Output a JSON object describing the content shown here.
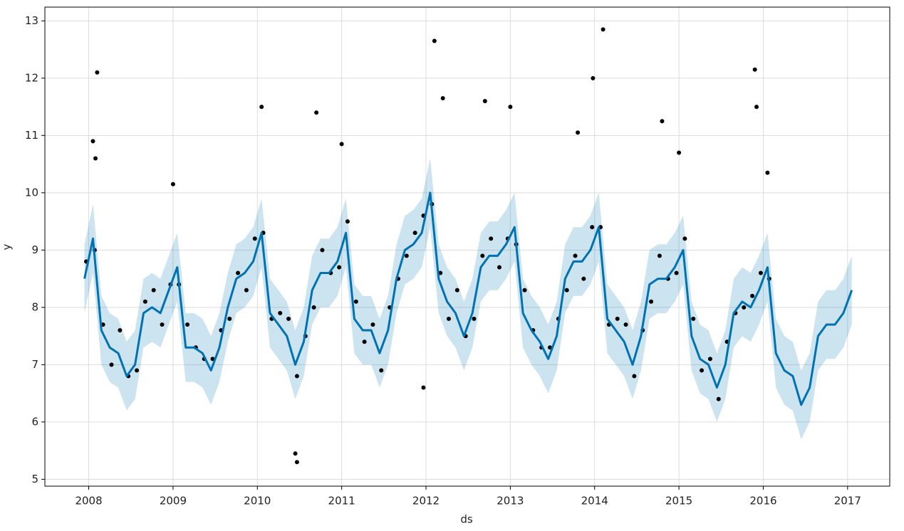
{
  "chart_data": {
    "type": "forecast",
    "x_label": "ds",
    "y_label": "y",
    "xlim": [
      2007.48,
      2017.5
    ],
    "ylim": [
      4.88,
      13.24
    ],
    "xticks": [
      2008,
      2009,
      2010,
      2011,
      2012,
      2013,
      2014,
      2015,
      2016,
      2017
    ],
    "yticks": [
      5,
      6,
      7,
      8,
      9,
      10,
      11,
      12,
      13
    ],
    "grid": true,
    "forecast": {
      "color": "#0072b2",
      "x": [
        2007.95,
        2008.05,
        2008.15,
        2008.25,
        2008.35,
        2008.45,
        2008.55,
        2008.65,
        2008.75,
        2008.85,
        2008.95,
        2009.05,
        2009.15,
        2009.25,
        2009.35,
        2009.45,
        2009.55,
        2009.65,
        2009.75,
        2009.85,
        2009.95,
        2010.05,
        2010.15,
        2010.25,
        2010.35,
        2010.45,
        2010.55,
        2010.65,
        2010.75,
        2010.85,
        2010.95,
        2011.05,
        2011.15,
        2011.25,
        2011.35,
        2011.45,
        2011.55,
        2011.65,
        2011.75,
        2011.85,
        2011.95,
        2012.05,
        2012.15,
        2012.25,
        2012.35,
        2012.45,
        2012.55,
        2012.65,
        2012.75,
        2012.85,
        2012.95,
        2013.05,
        2013.15,
        2013.25,
        2013.35,
        2013.45,
        2013.55,
        2013.65,
        2013.75,
        2013.85,
        2013.95,
        2014.05,
        2014.15,
        2014.25,
        2014.35,
        2014.45,
        2014.55,
        2014.65,
        2014.75,
        2014.85,
        2014.95,
        2015.05,
        2015.15,
        2015.25,
        2015.35,
        2015.45,
        2015.55,
        2015.65,
        2015.75,
        2015.85,
        2015.95,
        2016.05,
        2016.15,
        2016.25,
        2016.35,
        2016.45,
        2016.55,
        2016.65,
        2016.75,
        2016.85,
        2016.95,
        2017.05
      ],
      "values": [
        8.5,
        9.2,
        7.6,
        7.3,
        7.2,
        6.8,
        7.0,
        7.9,
        8.0,
        7.9,
        8.3,
        8.7,
        7.3,
        7.3,
        7.2,
        6.9,
        7.3,
        8.0,
        8.5,
        8.6,
        8.8,
        9.3,
        7.9,
        7.7,
        7.5,
        7.0,
        7.4,
        8.3,
        8.6,
        8.6,
        8.8,
        9.3,
        7.8,
        7.6,
        7.6,
        7.2,
        7.6,
        8.5,
        9.0,
        9.1,
        9.3,
        10.0,
        8.5,
        8.1,
        7.9,
        7.5,
        7.9,
        8.7,
        8.9,
        8.9,
        9.1,
        9.4,
        7.9,
        7.6,
        7.4,
        7.1,
        7.5,
        8.5,
        8.8,
        8.8,
        9.0,
        9.4,
        7.8,
        7.6,
        7.4,
        7.0,
        7.5,
        8.4,
        8.5,
        8.5,
        8.7,
        9.0,
        7.5,
        7.1,
        7.0,
        6.6,
        7.0,
        7.9,
        8.1,
        8.0,
        8.3,
        8.7,
        7.2,
        6.9,
        6.8,
        6.3,
        6.6,
        7.5,
        7.7,
        7.7,
        7.9,
        8.3
      ],
      "upper": [
        9.1,
        9.8,
        8.2,
        7.9,
        7.8,
        7.4,
        7.6,
        8.5,
        8.6,
        8.5,
        8.9,
        9.3,
        7.9,
        7.9,
        7.8,
        7.5,
        7.9,
        8.6,
        9.1,
        9.2,
        9.4,
        9.9,
        8.5,
        8.3,
        8.1,
        7.6,
        8.0,
        8.9,
        9.2,
        9.2,
        9.4,
        9.9,
        8.4,
        8.2,
        8.2,
        7.8,
        8.2,
        9.1,
        9.6,
        9.7,
        9.9,
        10.6,
        9.1,
        8.7,
        8.5,
        8.1,
        8.5,
        9.3,
        9.5,
        9.5,
        9.7,
        10.0,
        8.5,
        8.2,
        8.0,
        7.7,
        8.1,
        9.1,
        9.4,
        9.4,
        9.6,
        10.0,
        8.4,
        8.2,
        8.0,
        7.6,
        8.1,
        9.0,
        9.1,
        9.1,
        9.3,
        9.6,
        8.1,
        7.7,
        7.6,
        7.2,
        7.6,
        8.5,
        8.7,
        8.6,
        8.9,
        9.3,
        7.8,
        7.5,
        7.4,
        6.9,
        7.2,
        8.1,
        8.3,
        8.3,
        8.5,
        8.9
      ],
      "lower": [
        7.9,
        8.6,
        7.0,
        6.7,
        6.6,
        6.2,
        6.4,
        7.3,
        7.4,
        7.3,
        7.7,
        8.1,
        6.7,
        6.7,
        6.6,
        6.3,
        6.7,
        7.4,
        7.9,
        8.0,
        8.2,
        8.7,
        7.3,
        7.1,
        6.9,
        6.4,
        6.8,
        7.7,
        8.0,
        8.0,
        8.2,
        8.7,
        7.2,
        7.0,
        7.0,
        6.6,
        7.0,
        7.9,
        8.4,
        8.5,
        8.7,
        9.4,
        7.9,
        7.5,
        7.3,
        6.9,
        7.3,
        8.1,
        8.3,
        8.3,
        8.5,
        8.8,
        7.3,
        7.0,
        6.8,
        6.5,
        6.9,
        7.9,
        8.2,
        8.2,
        8.4,
        8.8,
        7.2,
        7.0,
        6.8,
        6.4,
        6.9,
        7.8,
        7.9,
        7.9,
        8.1,
        8.4,
        6.9,
        6.5,
        6.4,
        6.0,
        6.4,
        7.3,
        7.5,
        7.4,
        7.7,
        8.1,
        6.6,
        6.3,
        6.2,
        5.7,
        6.0,
        6.9,
        7.1,
        7.1,
        7.3,
        7.7
      ]
    },
    "observed": {
      "color": "#000000",
      "x": [
        2007.97,
        2008.07,
        2008.17,
        2008.27,
        2008.37,
        2008.47,
        2008.57,
        2008.67,
        2008.77,
        2008.87,
        2008.97,
        2009.07,
        2009.17,
        2009.27,
        2009.37,
        2009.47,
        2009.57,
        2009.67,
        2009.77,
        2009.87,
        2009.97,
        2010.07,
        2010.17,
        2010.27,
        2010.37,
        2010.47,
        2010.57,
        2010.67,
        2010.77,
        2010.87,
        2010.97,
        2011.07,
        2011.17,
        2011.27,
        2011.37,
        2011.47,
        2011.57,
        2011.67,
        2011.77,
        2011.87,
        2011.97,
        2012.07,
        2012.17,
        2012.27,
        2012.37,
        2012.47,
        2012.57,
        2012.67,
        2012.77,
        2012.87,
        2012.97,
        2013.07,
        2013.17,
        2013.27,
        2013.37,
        2013.47,
        2013.57,
        2013.67,
        2013.77,
        2013.87,
        2013.97,
        2014.07,
        2014.17,
        2014.27,
        2014.37,
        2014.47,
        2014.57,
        2014.67,
        2014.77,
        2014.87,
        2014.97,
        2015.07,
        2015.17,
        2015.27,
        2015.37,
        2015.47,
        2015.57,
        2015.67,
        2015.77,
        2015.87,
        2015.97,
        2016.07,
        2008.1,
        2008.05,
        2008.08,
        2012.1,
        2014.1,
        2013.98,
        2015.9,
        2015.92,
        2010.45,
        2010.47,
        2011.97,
        2010.05,
        2010.7,
        2011.0,
        2012.2,
        2012.7,
        2013.0,
        2014.8,
        2013.8,
        2015.0,
        2016.05,
        2009.0
      ],
      "values": [
        8.8,
        9.0,
        7.7,
        7.0,
        7.6,
        6.8,
        6.9,
        8.1,
        8.3,
        7.7,
        8.4,
        8.4,
        7.7,
        7.3,
        7.1,
        7.1,
        7.6,
        7.8,
        8.6,
        8.3,
        9.2,
        9.3,
        7.8,
        7.9,
        7.8,
        6.8,
        7.5,
        8.0,
        9.0,
        8.6,
        8.7,
        9.5,
        8.1,
        7.4,
        7.7,
        6.9,
        8.0,
        8.5,
        8.9,
        9.3,
        9.6,
        9.8,
        8.6,
        7.8,
        8.3,
        7.5,
        7.8,
        8.9,
        9.2,
        8.7,
        9.2,
        9.1,
        8.3,
        7.6,
        7.3,
        7.3,
        7.8,
        8.3,
        8.9,
        8.5,
        9.4,
        9.4,
        7.7,
        7.8,
        7.7,
        6.8,
        7.6,
        8.1,
        8.9,
        8.5,
        8.6,
        9.2,
        7.8,
        6.9,
        7.1,
        6.4,
        7.4,
        7.9,
        8.0,
        8.2,
        8.6,
        8.5,
        12.1,
        10.9,
        10.6,
        12.65,
        12.85,
        12.0,
        12.15,
        11.5,
        5.45,
        5.3,
        6.6,
        11.5,
        11.4,
        10.85,
        11.65,
        11.6,
        11.5,
        11.25,
        11.05,
        10.7,
        10.35,
        10.15
      ]
    }
  }
}
